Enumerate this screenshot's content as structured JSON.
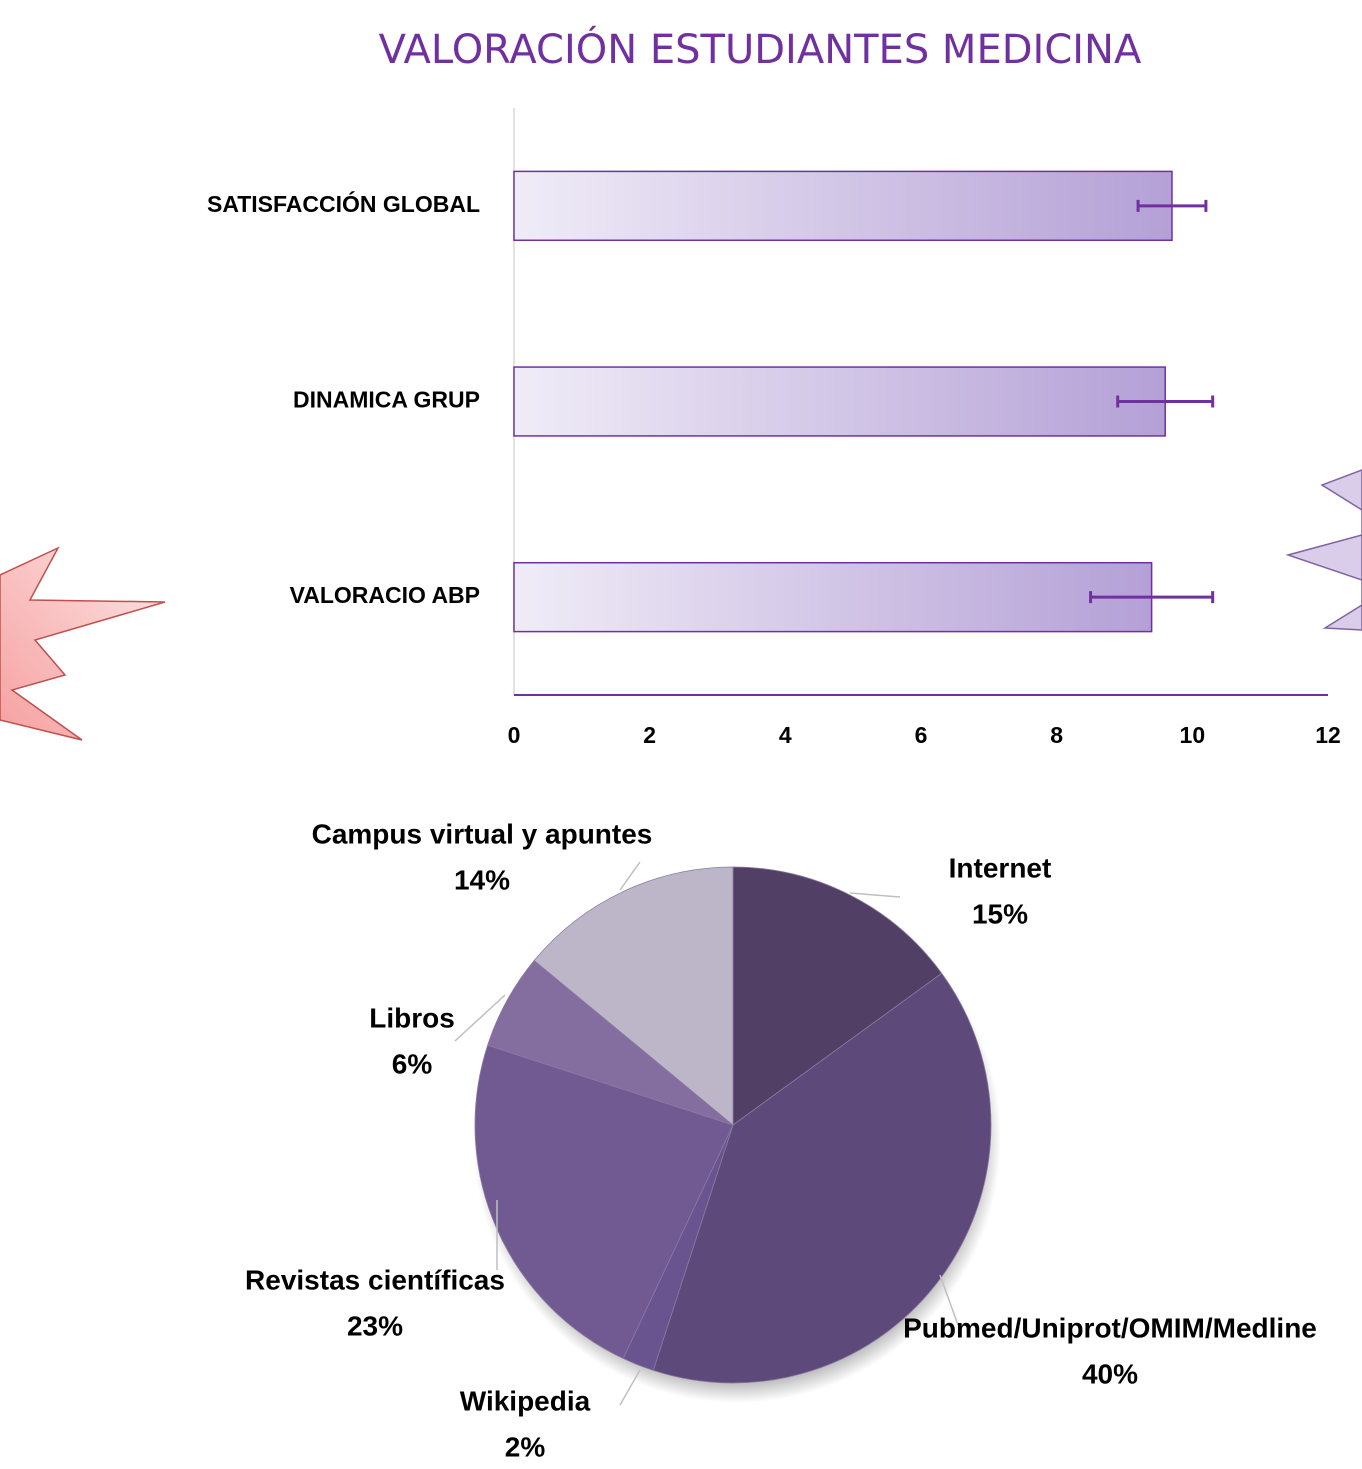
{
  "chart_data": [
    {
      "type": "bar",
      "orientation": "horizontal",
      "title": "VALORACIÓN ESTUDIANTES MEDICINA",
      "categories": [
        "SATISFACCIÓN GLOBAL",
        "DINAMICA GRUP",
        "VALORACIO ABP"
      ],
      "values": [
        9.7,
        9.6,
        9.4
      ],
      "errors": [
        0.5,
        0.7,
        0.9
      ],
      "color": "#b4a0d6",
      "xlim": [
        0,
        12
      ],
      "xticks": [
        0,
        2,
        4,
        6,
        8,
        10,
        12
      ]
    },
    {
      "type": "pie",
      "categories": [
        "Internet",
        "Pubmed/Uniprot/OMIM/Medline",
        "Wikipedia",
        "Revistas científicas",
        "Libros",
        "Campus virtual y apuntes"
      ],
      "values": [
        15,
        40,
        2,
        23,
        6,
        14
      ],
      "value_labels": [
        "15%",
        "40%",
        "2%",
        "23%",
        "6%",
        "14%"
      ],
      "colors": [
        "#523f66",
        "#5e4a7a",
        "#6a5490",
        "#715a91",
        "#836e9f",
        "#bdb6c9"
      ]
    }
  ]
}
